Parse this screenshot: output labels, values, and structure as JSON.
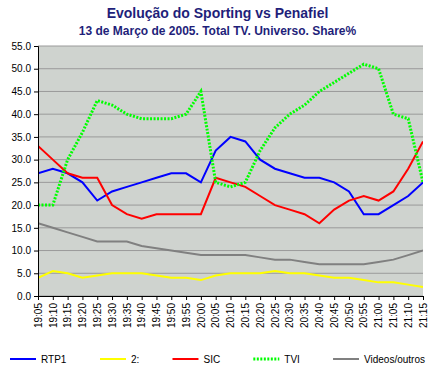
{
  "chart_data": {
    "type": "line",
    "title": "Evolução do Sporting vs Penafiel",
    "subtitle": "13 de Março de 2005. Total TV. Universo. Share%",
    "categories": [
      "19:05",
      "19:10",
      "19:15",
      "19:20",
      "19:25",
      "19:30",
      "19:35",
      "19:40",
      "19:45",
      "19:50",
      "19:55",
      "20:00",
      "20:05",
      "20:10",
      "20:15",
      "20:20",
      "20:25",
      "20:30",
      "20:35",
      "20:40",
      "20:45",
      "20:50",
      "20:55",
      "21:00",
      "21:05",
      "21:10",
      "21:15"
    ],
    "series": [
      {
        "name": "RTP1",
        "color": "#0000ff",
        "values": [
          27,
          28,
          27,
          25,
          21,
          23,
          24,
          25,
          26,
          27,
          27,
          25,
          32,
          35,
          34,
          30,
          28,
          27,
          26,
          26,
          25,
          23,
          18,
          18,
          20,
          22,
          25
        ]
      },
      {
        "name": "2:",
        "color": "#ffff00",
        "values": [
          4,
          5.5,
          5,
          4,
          4.5,
          5,
          5,
          5,
          4.5,
          4,
          4,
          3.5,
          4.5,
          5,
          5,
          5,
          5.5,
          5,
          5,
          4.5,
          4,
          4,
          3.5,
          3,
          3,
          2.5,
          2
        ]
      },
      {
        "name": "SIC",
        "color": "#ff0000",
        "values": [
          33,
          30,
          27,
          26,
          26,
          20,
          18,
          17,
          18,
          18,
          18,
          18,
          26,
          25,
          24,
          22,
          20,
          19,
          18,
          16,
          19,
          21,
          22,
          21,
          23,
          28,
          34
        ]
      },
      {
        "name": "TVI",
        "color": "#00ff00",
        "line_style": "dotted",
        "values": [
          20,
          20,
          30,
          36,
          43,
          42,
          40,
          39,
          39,
          39,
          40,
          45,
          25,
          24,
          25,
          32,
          37,
          40,
          42,
          45,
          47,
          49,
          51,
          50,
          40,
          39,
          25
        ]
      },
      {
        "name": "Videos/outros",
        "color": "#808080",
        "values": [
          16,
          15,
          14,
          13,
          12,
          12,
          12,
          11,
          10.5,
          10,
          9.5,
          9,
          9,
          9,
          9,
          8.5,
          8,
          8,
          7.5,
          7,
          7,
          7,
          7,
          7.5,
          8,
          9,
          10
        ]
      }
    ],
    "ylim": [
      0,
      55
    ],
    "yticks": [
      {
        "value": 0,
        "label": "0.0"
      },
      {
        "value": 5,
        "label": "5.0"
      },
      {
        "value": 10,
        "label": "10.0"
      },
      {
        "value": 15,
        "label": "15.0"
      },
      {
        "value": 20,
        "label": "20.0"
      },
      {
        "value": 25,
        "label": "25.0"
      },
      {
        "value": 30,
        "label": "30.0"
      },
      {
        "value": 35,
        "label": "35.0"
      },
      {
        "value": 40,
        "label": "40.0"
      },
      {
        "value": 45,
        "label": "45.0"
      },
      {
        "value": 50,
        "label": "50.0"
      },
      {
        "value": 55,
        "label": "55.0"
      }
    ],
    "grid": true,
    "legend": "bottom"
  }
}
